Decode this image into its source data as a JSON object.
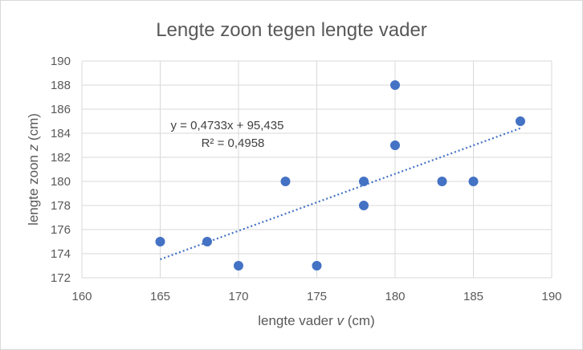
{
  "chart_data": {
    "type": "scatter",
    "title": "Lengte zoon tegen lengte vader",
    "xlabel_prefix": "lengte vader ",
    "xlabel_var": "v",
    "xlabel_suffix": " (cm)",
    "ylabel_prefix": "lengte zoon ",
    "ylabel_var": "z",
    "ylabel_suffix": " (cm)",
    "xlim": [
      160,
      190
    ],
    "ylim": [
      172,
      190
    ],
    "xticks": [
      160,
      165,
      170,
      175,
      180,
      185,
      190
    ],
    "yticks": [
      172,
      174,
      176,
      178,
      180,
      182,
      184,
      186,
      188,
      190
    ],
    "grid": true,
    "points": [
      {
        "x": 165,
        "y": 175
      },
      {
        "x": 168,
        "y": 175
      },
      {
        "x": 170,
        "y": 173
      },
      {
        "x": 173,
        "y": 180
      },
      {
        "x": 175,
        "y": 173
      },
      {
        "x": 178,
        "y": 178
      },
      {
        "x": 178,
        "y": 180
      },
      {
        "x": 180,
        "y": 188
      },
      {
        "x": 180,
        "y": 183
      },
      {
        "x": 183,
        "y": 180
      },
      {
        "x": 185,
        "y": 180
      },
      {
        "x": 188,
        "y": 185
      }
    ],
    "trendline": {
      "type": "linear",
      "slope": 0.4733,
      "intercept": 95.435,
      "x_range": [
        165,
        188
      ],
      "equation_label": "y = 0,4733x + 95,435",
      "r2_label": "R² = 0,4958"
    },
    "colors": {
      "marker": "#4472c4",
      "trendline": "#4472c4",
      "grid": "#d9d9d9",
      "text": "#595959"
    }
  }
}
